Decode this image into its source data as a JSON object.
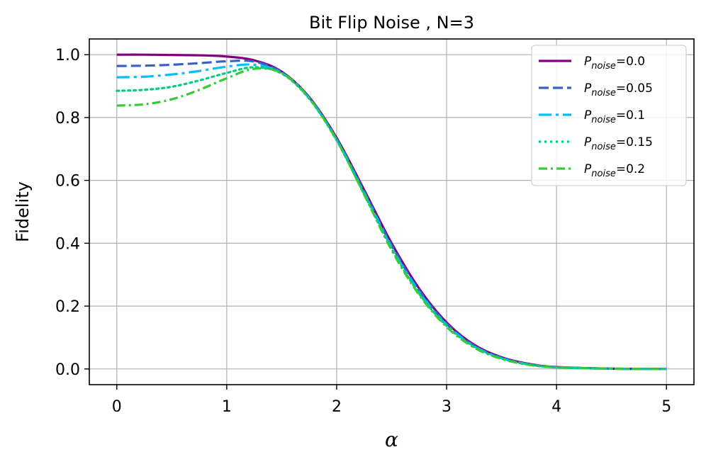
{
  "chart_data": {
    "type": "line",
    "title": "Bit Flip Noise , N=3",
    "xlabel": "α",
    "ylabel": "Fidelity",
    "xlim": [
      -0.25,
      5.25
    ],
    "ylim": [
      -0.05,
      1.05
    ],
    "xticks": [
      0,
      1,
      2,
      3,
      4,
      5
    ],
    "xtick_labels": [
      "0",
      "1",
      "2",
      "3",
      "4",
      "5"
    ],
    "yticks": [
      0.0,
      0.2,
      0.4,
      0.6,
      0.8,
      1.0
    ],
    "ytick_labels": [
      "0.0",
      "0.2",
      "0.4",
      "0.6",
      "0.8",
      "1.0"
    ],
    "grid": true,
    "legend_position": "top-right",
    "legend_symbol": "P",
    "legend_subscript": "noise",
    "x": [
      0,
      0.25,
      0.5,
      0.75,
      1.0,
      1.25,
      1.5,
      1.75,
      2.0,
      2.25,
      2.5,
      2.75,
      3.0,
      3.25,
      3.5,
      3.75,
      4.0,
      4.5,
      5.0
    ],
    "series": [
      {
        "name": "=0.0",
        "color": "#800080",
        "dash": "solid",
        "values": [
          1.0,
          1.0,
          0.999,
          0.998,
          0.994,
          0.982,
          0.946,
          0.865,
          0.735,
          0.57,
          0.4,
          0.256,
          0.148,
          0.077,
          0.037,
          0.016,
          0.006,
          0.001,
          0.0
        ]
      },
      {
        "name": "=0.05",
        "color": "#3a5fcd",
        "dash": "dashed",
        "values": [
          0.964,
          0.965,
          0.968,
          0.973,
          0.979,
          0.978,
          0.944,
          0.863,
          0.732,
          0.565,
          0.393,
          0.25,
          0.144,
          0.074,
          0.035,
          0.015,
          0.006,
          0.001,
          0.0
        ]
      },
      {
        "name": "=0.1",
        "color": "#00bfff",
        "dash": "dashdot",
        "values": [
          0.928,
          0.93,
          0.937,
          0.948,
          0.962,
          0.968,
          0.942,
          0.861,
          0.729,
          0.56,
          0.387,
          0.245,
          0.14,
          0.072,
          0.034,
          0.014,
          0.005,
          0.001,
          0.0
        ]
      },
      {
        "name": "=0.15",
        "color": "#00cc88",
        "dash": "dotted",
        "values": [
          0.885,
          0.888,
          0.898,
          0.918,
          0.942,
          0.96,
          0.94,
          0.86,
          0.727,
          0.556,
          0.382,
          0.24,
          0.137,
          0.07,
          0.033,
          0.014,
          0.005,
          0.001,
          0.0
        ]
      },
      {
        "name": "=0.2",
        "color": "#33cc33",
        "dash": "dashdot2",
        "values": [
          0.838,
          0.842,
          0.858,
          0.888,
          0.925,
          0.955,
          0.942,
          0.862,
          0.728,
          0.555,
          0.378,
          0.236,
          0.134,
          0.068,
          0.032,
          0.013,
          0.005,
          0.001,
          0.0
        ]
      }
    ]
  }
}
